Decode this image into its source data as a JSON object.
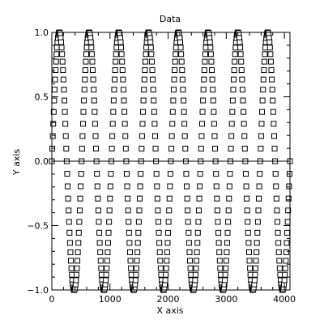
{
  "chart_data": {
    "type": "scatter",
    "title": "Data",
    "xlabel": "X axis",
    "ylabel": "Y axis",
    "xlim": [
      0,
      4096
    ],
    "ylim": [
      -1.0,
      1.0
    ],
    "xticks": [
      0,
      1000,
      2000,
      3000,
      4000
    ],
    "xtick_labels": [
      "0",
      "1000",
      "2000",
      "3000",
      "4000"
    ],
    "yticks": [
      -1.0,
      -0.5,
      0.0,
      0.5,
      1.0
    ],
    "ytick_labels": [
      "−1.0",
      "−0.5",
      "0.0",
      "0.5",
      "1.0"
    ],
    "zero_line": true,
    "series": [
      {
        "function": "sine",
        "amplitude": 1.0,
        "period": 512,
        "phase_offset_x": 0,
        "x_start": 0,
        "x_end": 4096,
        "x_step": 8,
        "marker": "open-square",
        "color": "#000000"
      }
    ]
  }
}
